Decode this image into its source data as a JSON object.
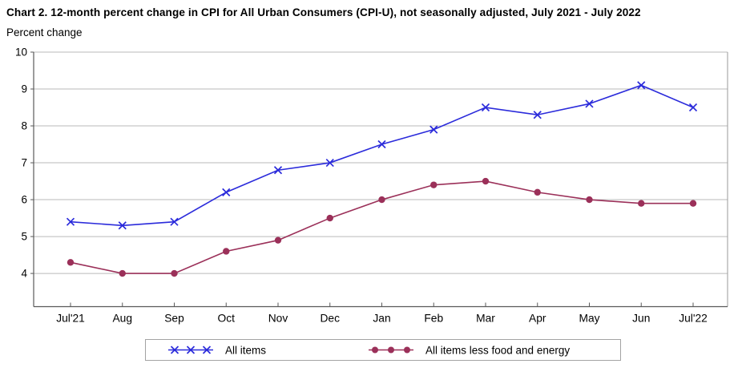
{
  "title": "Chart 2. 12-month percent change in CPI for All Urban Consumers (CPI-U), not seasonally adjusted, July 2021 - July 2022",
  "ylabel": "Percent change",
  "chart_data": {
    "type": "line",
    "title": "Chart 2. 12-month percent change in CPI for All Urban Consumers (CPI-U), not seasonally adjusted, July 2021 - July 2022",
    "xlabel": "",
    "ylabel": "Percent change",
    "categories": [
      "Jul'21",
      "Aug",
      "Sep",
      "Oct",
      "Nov",
      "Dec",
      "Jan",
      "Feb",
      "Mar",
      "Apr",
      "May",
      "Jun",
      "Jul'22"
    ],
    "series": [
      {
        "name": "All items",
        "marker": "x",
        "color": "#2b2bdb",
        "values": [
          5.4,
          5.3,
          5.4,
          6.2,
          6.8,
          7.0,
          7.5,
          7.9,
          8.5,
          8.3,
          8.6,
          9.1,
          8.5
        ]
      },
      {
        "name": "All items less food and energy",
        "marker": "circle",
        "color": "#9b3059",
        "values": [
          4.3,
          4.0,
          4.0,
          4.6,
          4.9,
          5.5,
          6.0,
          6.4,
          6.5,
          6.2,
          6.0,
          5.9,
          5.9
        ]
      }
    ],
    "yticks": [
      4,
      5,
      6,
      7,
      8,
      9,
      10
    ],
    "ylim": [
      3.1,
      10
    ],
    "grid": true,
    "legend_position": "bottom"
  },
  "colors": {
    "grid": "#bababa",
    "axis": "#5a5a5a",
    "border": "#9a9a9a",
    "text": "#000000"
  }
}
